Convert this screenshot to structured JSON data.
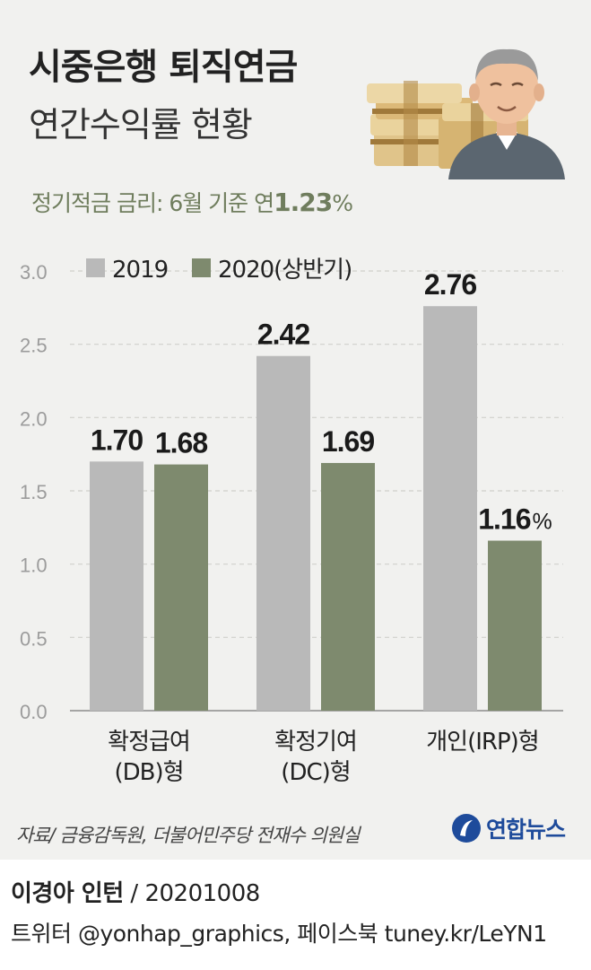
{
  "header": {
    "title": "시중은행 퇴직연금",
    "subtitle": "연간수익률 현황",
    "rate_note_prefix": "정기적금 금리: 6월 기준 연",
    "rate_value": "1.23",
    "rate_unit": "%"
  },
  "illustration": {
    "icons": [
      "money-stack-icon",
      "elderly-man-icon"
    ]
  },
  "colors": {
    "bar_2019": "#b9b9b9",
    "bar_2020": "#7e8a6e",
    "background": "#f1f1ef",
    "accent_text": "#6f7d5d",
    "logo": "#1e4b9b"
  },
  "chart_data": {
    "type": "bar",
    "categories": [
      [
        "확정급여",
        "(DB)형"
      ],
      [
        "확정기여",
        "(DC)형"
      ],
      [
        "개인(IRP)형"
      ]
    ],
    "series": [
      {
        "name": "2019",
        "values": [
          1.7,
          2.42,
          2.76
        ],
        "labels": [
          "1.70",
          "2.42",
          "2.76"
        ]
      },
      {
        "name": "2020(상반기)",
        "values": [
          1.68,
          1.69,
          1.16
        ],
        "labels": [
          "1.68",
          "1.69",
          "1.16"
        ]
      }
    ],
    "unit_label": "%",
    "yticks": [
      "0.0",
      "0.5",
      "1.0",
      "1.5",
      "2.0",
      "2.5",
      "3.0"
    ],
    "ylim": [
      0,
      3.0
    ],
    "grid": true,
    "legend_position": "top"
  },
  "footer": {
    "source": "자료/ 금융감독원, 더불어민주당 전재수 의원실",
    "logo_text": "연합뉴스",
    "author": "이경아 인턴",
    "separator": " / ",
    "date": "20201008",
    "social": "트위터 @yonhap_graphics, 페이스북 tuney.kr/LeYN1"
  }
}
